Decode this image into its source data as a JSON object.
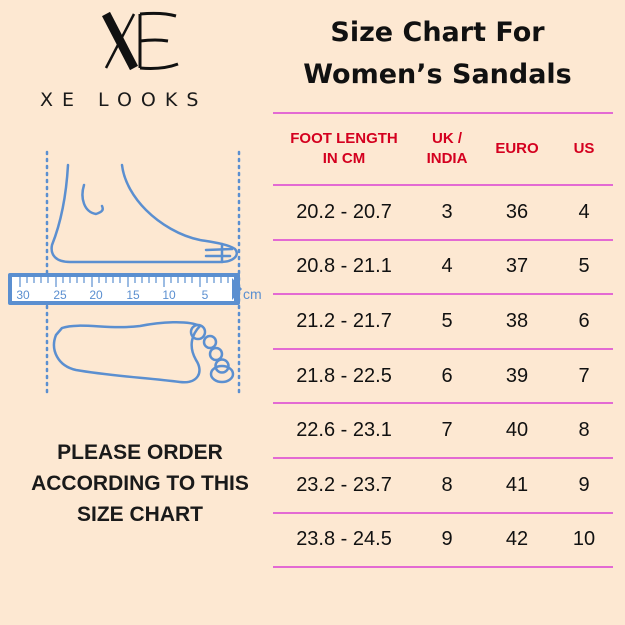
{
  "brand": {
    "mark": "XE",
    "name": "XE LOOKS"
  },
  "title": {
    "line1": "Size Chart For",
    "line2": "Women’s Sandals"
  },
  "ruler": {
    "ticks": [
      "30",
      "25",
      "20",
      "15",
      "10",
      "5"
    ],
    "unit": "cm"
  },
  "note": {
    "line1": "PLEASE ORDER",
    "line2": "ACCORDING TO THIS",
    "line3": "SIZE CHART"
  },
  "table": {
    "headers": [
      {
        "line1": "FOOT LENGTH",
        "line2": "IN CM"
      },
      {
        "line1": "UK /",
        "line2": "INDIA"
      },
      {
        "line1": "EURO",
        "line2": ""
      },
      {
        "line1": "US",
        "line2": ""
      }
    ],
    "rows": [
      [
        "20.2 - 20.7",
        "3",
        "36",
        "4"
      ],
      [
        "20.8 - 21.1",
        "4",
        "37",
        "5"
      ],
      [
        "21.2 - 21.7",
        "5",
        "38",
        "6"
      ],
      [
        "21.8 - 22.5",
        "6",
        "39",
        "7"
      ],
      [
        "22.6 - 23.1",
        "7",
        "40",
        "8"
      ],
      [
        "23.2 - 23.7",
        "8",
        "41",
        "9"
      ],
      [
        "23.8 - 24.5",
        "9",
        "42",
        "10"
      ]
    ]
  },
  "colors": {
    "background": "#fde8d2",
    "header_text": "#d4001f",
    "row_divider": "#e36ad3",
    "foot_outline": "#5b8fd0"
  }
}
